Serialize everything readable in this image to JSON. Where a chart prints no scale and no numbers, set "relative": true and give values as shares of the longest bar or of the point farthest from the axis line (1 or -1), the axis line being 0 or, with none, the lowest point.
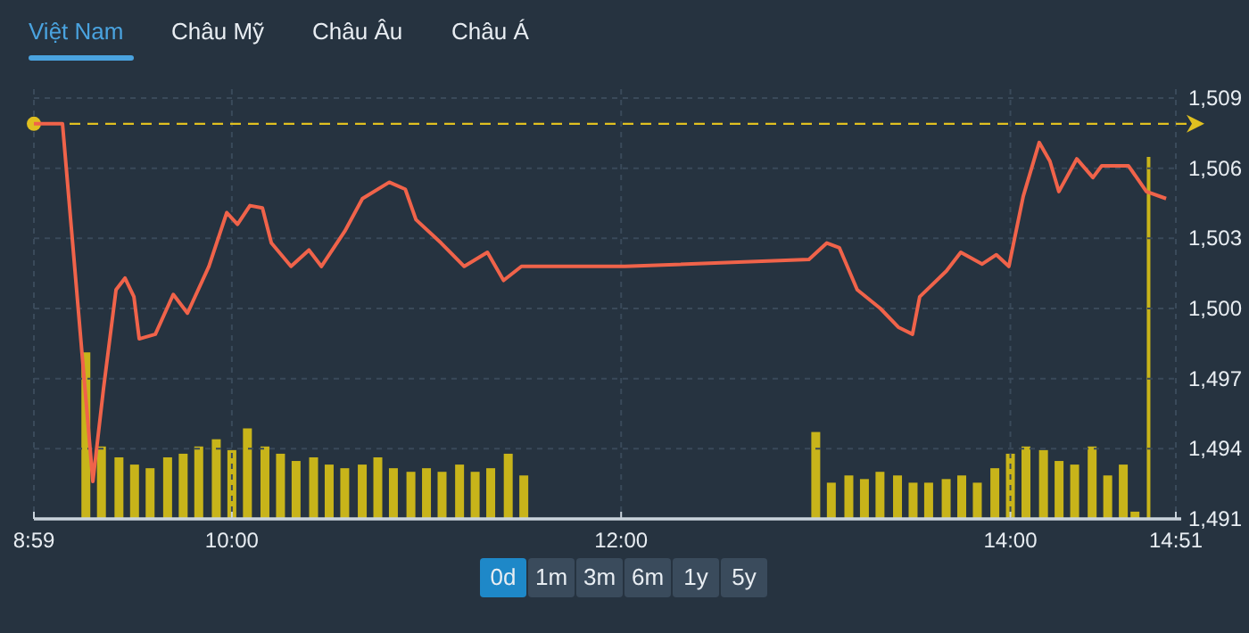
{
  "chart_data": [
    {
      "type": "line",
      "annotations": [
        "Việt Nam",
        "Châu Mỹ",
        "Châu Âu",
        "Châu Á",
        "0d",
        "1m",
        "3m",
        "6m",
        "1y",
        "5y"
      ],
      "xlim": [
        8.983,
        14.85
      ],
      "xticks": [
        {
          "value": 8.983,
          "label": "8:59"
        },
        {
          "value": 10,
          "label": "10:00"
        },
        {
          "value": 12,
          "label": "12:00"
        },
        {
          "value": 14,
          "label": "14:00"
        },
        {
          "value": 14.85,
          "label": "14:51"
        }
      ],
      "ylim": [
        1491,
        1509
      ],
      "yticks": [
        {
          "value": 1491,
          "label": "1,491"
        },
        {
          "value": 1494,
          "label": "1,494"
        },
        {
          "value": 1497,
          "label": "1,497"
        },
        {
          "value": 1500,
          "label": "1,500"
        },
        {
          "value": 1503,
          "label": "1,503"
        },
        {
          "value": 1506,
          "label": "1,506"
        },
        {
          "value": 1509,
          "label": "1,509"
        }
      ],
      "grid": true,
      "ref_lines": [
        {
          "axis": "y",
          "value": 1507.9,
          "color": "#e0c020",
          "line_style": "dashed"
        }
      ],
      "series": [
        {
          "color": "#f0634a",
          "marker": "none",
          "line_style": "solid",
          "x": [
            8.983,
            9.13,
            9.286,
            9.341,
            9.405,
            9.451,
            9.497,
            9.524,
            9.607,
            9.699,
            9.772,
            9.882,
            9.974,
            10.029,
            10.093,
            10.157,
            10.203,
            10.304,
            10.396,
            10.46,
            10.58,
            10.671,
            10.809,
            10.891,
            10.946,
            11.075,
            11.194,
            11.313,
            11.396,
            11.488,
            12.02,
            12.965,
            13.057,
            13.121,
            13.213,
            13.332,
            13.424,
            13.497,
            13.534,
            13.671,
            13.745,
            13.855,
            13.928,
            13.992,
            14.066,
            14.148,
            14.203,
            14.249,
            14.341,
            14.424,
            14.469,
            14.607,
            14.699,
            14.8
          ],
          "values": [
            1507.9,
            1507.9,
            1492.6,
            1496.6,
            1500.8,
            1501.3,
            1500.5,
            1498.7,
            1498.9,
            1500.6,
            1499.8,
            1501.8,
            1504.1,
            1503.6,
            1504.4,
            1504.3,
            1502.8,
            1501.8,
            1502.5,
            1501.8,
            1503.3,
            1504.7,
            1505.4,
            1505.1,
            1503.8,
            1502.8,
            1501.8,
            1502.4,
            1501.2,
            1501.8,
            1501.8,
            1502.1,
            1502.8,
            1502.6,
            1500.8,
            1500.0,
            1499.2,
            1498.9,
            1500.5,
            1501.6,
            1502.4,
            1501.9,
            1502.3,
            1501.8,
            1504.8,
            1507.1,
            1506.3,
            1505.0,
            1506.4,
            1505.6,
            1506.1,
            1506.1,
            1505.0,
            1504.7
          ]
        }
      ]
    },
    {
      "type": "bar",
      "relative": true,
      "xlim": [
        8.983,
        14.85
      ],
      "x": [
        9.25,
        9.33,
        9.42,
        9.5,
        9.58,
        9.67,
        9.75,
        9.83,
        9.92,
        10.0,
        10.08,
        10.17,
        10.25,
        10.33,
        10.42,
        10.5,
        10.58,
        10.67,
        10.75,
        10.83,
        10.92,
        11.0,
        11.08,
        11.17,
        11.25,
        11.33,
        11.42,
        11.5,
        13.0,
        13.08,
        13.17,
        13.25,
        13.33,
        13.42,
        13.5,
        13.58,
        13.67,
        13.75,
        13.83,
        13.92,
        14.0,
        14.08,
        14.17,
        14.25,
        14.33,
        14.42,
        14.5,
        14.58,
        14.64,
        14.71
      ],
      "series": [
        {
          "color": "#c8b41a",
          "values": [
            0.46,
            0.2,
            0.17,
            0.15,
            0.14,
            0.17,
            0.18,
            0.2,
            0.22,
            0.19,
            0.25,
            0.2,
            0.18,
            0.16,
            0.17,
            0.15,
            0.14,
            0.15,
            0.17,
            0.14,
            0.13,
            0.14,
            0.13,
            0.15,
            0.13,
            0.14,
            0.18,
            0.12,
            0.24,
            0.1,
            0.12,
            0.11,
            0.13,
            0.12,
            0.1,
            0.1,
            0.11,
            0.12,
            0.1,
            0.14,
            0.18,
            0.2,
            0.19,
            0.16,
            0.15,
            0.2,
            0.12,
            0.15,
            0.02,
            1
          ]
        }
      ]
    }
  ]
}
